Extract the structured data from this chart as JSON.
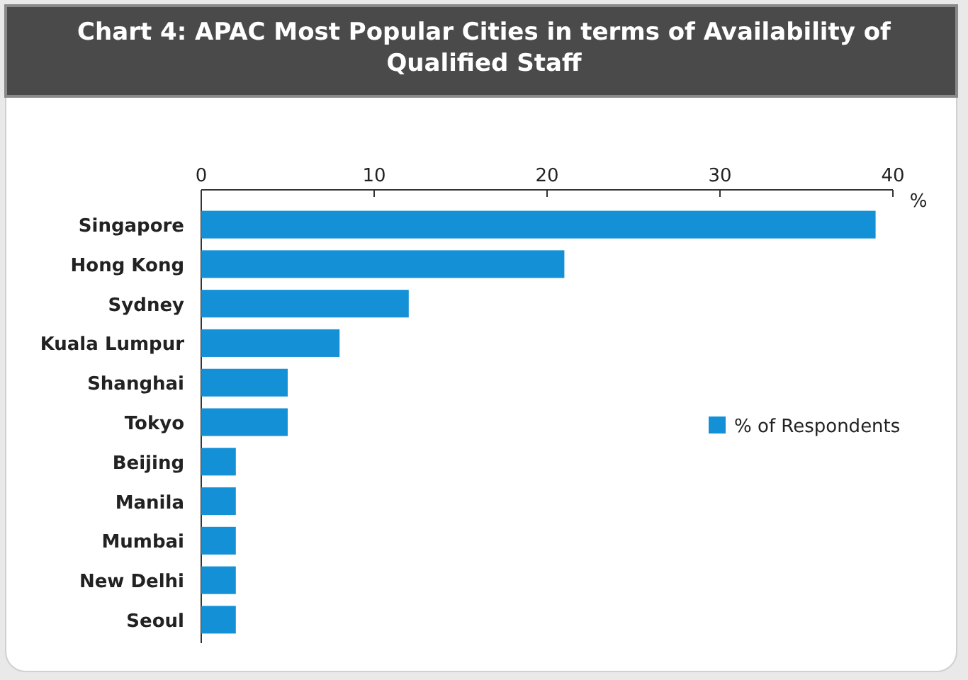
{
  "chart_data": {
    "type": "bar",
    "orientation": "horizontal",
    "title": "Chart 4: APAC Most Popular Cities in terms of Availability of Qualified Staff",
    "xlabel": "%",
    "categories": [
      "Singapore",
      "Hong Kong",
      "Sydney",
      "Kuala Lumpur",
      "Shanghai",
      "Tokyo",
      "Beijing",
      "Manila",
      "Mumbai",
      "New Delhi",
      "Seoul"
    ],
    "series": [
      {
        "name": "% of Respondents",
        "color": "#1490d6",
        "values": [
          39,
          21,
          12,
          8,
          5,
          5,
          2,
          2,
          2,
          2,
          2
        ]
      }
    ],
    "xlim": [
      0,
      40
    ],
    "xticks": [
      0,
      10,
      20,
      30,
      40
    ],
    "grid": false,
    "legend": "right"
  }
}
